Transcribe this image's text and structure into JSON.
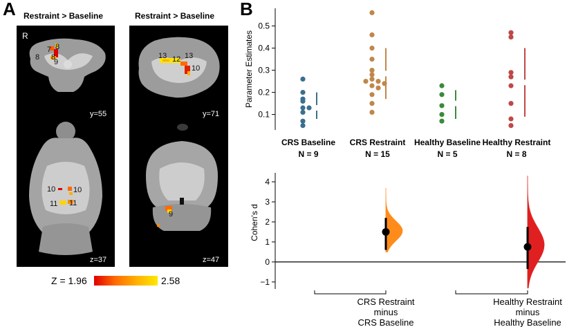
{
  "panels": {
    "a_letter": "A",
    "b_letter": "B"
  },
  "brain": {
    "titles": [
      "Restraint > Baseline",
      "Restraint > Baseline"
    ],
    "orientation_marker": "R",
    "slices": {
      "top_left": {
        "label": "y=55",
        "regions": [
          "8",
          "7",
          "8",
          "8",
          "9"
        ]
      },
      "top_right": {
        "label": "y=71",
        "regions": [
          "13",
          "12",
          "13",
          "10"
        ]
      },
      "bottom_left": {
        "label": "z=37",
        "regions": [
          "10",
          "10",
          "11",
          "11"
        ]
      },
      "bottom_right": {
        "label": "z=47",
        "regions": [
          "9"
        ]
      }
    }
  },
  "colorbar": {
    "min_label": "Z = 1.96",
    "max_label": "2.58",
    "colors": [
      "#e00000",
      "#ff6a00",
      "#ffb000",
      "#ffe800"
    ]
  },
  "chart_data": [
    {
      "type": "scatter",
      "ylabel": "Parameter Estimates",
      "ylim": [
        0.03,
        0.58
      ],
      "yticks": [
        0.1,
        0.2,
        0.3,
        0.4,
        0.5
      ],
      "tick_labels": [
        "0.1",
        "0.2",
        "0.3",
        "0.4",
        "0.5"
      ],
      "groups": [
        {
          "name": "CRS Baseline",
          "n_label": "N = 9",
          "color": "#3b6e8f",
          "values": [
            0.26,
            0.2,
            0.17,
            0.16,
            0.13,
            0.13,
            0.11,
            0.07,
            0.05
          ],
          "bar": {
            "gap_lower": 0.08,
            "mean": 0.13,
            "gap_upper": 0.2
          }
        },
        {
          "name": "CRS Restraint",
          "n_label": "N = 15",
          "color": "#c0874a",
          "values": [
            0.56,
            0.46,
            0.4,
            0.35,
            0.3,
            0.28,
            0.26,
            0.25,
            0.25,
            0.24,
            0.23,
            0.22,
            0.19,
            0.15,
            0.11
          ],
          "bar": {
            "gap_lower": 0.17,
            "mean": 0.285,
            "gap_upper": 0.4
          }
        },
        {
          "name": "Healthy Baseline",
          "n_label": "N = 5",
          "color": "#3a8a3a",
          "values": [
            0.23,
            0.19,
            0.14,
            0.1,
            0.07
          ],
          "bar": {
            "gap_lower": 0.08,
            "mean": 0.15,
            "gap_upper": 0.21
          }
        },
        {
          "name": "Healthy Restraint",
          "n_label": "N = 8",
          "color": "#c04747",
          "values": [
            0.47,
            0.45,
            0.29,
            0.27,
            0.23,
            0.15,
            0.08,
            0.05
          ],
          "bar": {
            "gap_lower": 0.09,
            "mean": 0.245,
            "gap_upper": 0.4
          }
        }
      ]
    },
    {
      "type": "area",
      "ylabel": "Cohen's d",
      "ylim": [
        -1.35,
        4.45
      ],
      "yticks": [
        -1,
        0,
        1,
        2,
        3,
        4
      ],
      "tick_labels": [
        "−1",
        "0",
        "1",
        "2",
        "3",
        "4"
      ],
      "comparisons": [
        {
          "lines": [
            "CRS Restraint",
            "minus",
            "CRS Baseline"
          ],
          "color": "#ff8c1a",
          "estimate": 1.5,
          "ci": [
            0.6,
            2.2
          ],
          "dist_range": [
            0.5,
            3.7
          ],
          "dist_peak": 1.55
        },
        {
          "lines": [
            "Healthy Restraint",
            "minus",
            "Healthy Baseline"
          ],
          "color": "#e02020",
          "estimate": 0.75,
          "ci": [
            -0.35,
            1.75
          ],
          "dist_range": [
            -1.3,
            4.3
          ],
          "dist_peak": 0.85
        }
      ]
    }
  ]
}
